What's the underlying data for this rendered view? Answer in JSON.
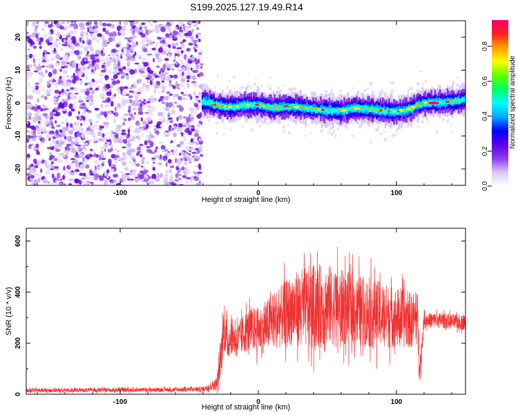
{
  "title": "S199.2025.127.19.49.R14",
  "chart_data": [
    {
      "type": "heatmap",
      "title": "S199.2025.127.19.49.R14",
      "xlabel": "Height of straight line (km)",
      "ylabel": "Frequency (Hz)",
      "xlim": [
        -168,
        150
      ],
      "ylim": [
        -25,
        25
      ],
      "x_ticks": [
        -100,
        0,
        100
      ],
      "y_ticks": [
        -20,
        -10,
        0,
        10,
        20
      ],
      "colorbar": {
        "label": "Normalized spectral amplitude",
        "range": [
          0,
          0.95
        ],
        "ticks": [
          0.0,
          0.2,
          0.4,
          0.6,
          0.8
        ],
        "colormap": [
          "#ffffff",
          "#d9c8f5",
          "#8a3cf0",
          "#5a00e6",
          "#0000ff",
          "#00aaff",
          "#00ffff",
          "#00ff60",
          "#60ff00",
          "#ffff00",
          "#ffa000",
          "#ff2020",
          "#ff0066"
        ]
      },
      "regions": [
        {
          "x_range": [
            -168,
            -41
          ],
          "description": "broadband noise, amplitude ~0.05-0.1"
        },
        {
          "x_range": [
            -41,
            150
          ],
          "description": "carrier signal"
        }
      ],
      "carrier_frequency": {
        "x": [
          -41,
          -36,
          -30,
          -20,
          -10,
          0,
          10,
          20,
          30,
          40,
          50,
          60,
          70,
          80,
          90,
          100,
          105,
          110,
          115,
          120,
          130,
          140,
          150
        ],
        "y": [
          0.5,
          0.2,
          -0.8,
          -1.2,
          -0.6,
          -0.5,
          -1.5,
          -1.0,
          -1.3,
          -1.8,
          -2.2,
          -2.4,
          -1.6,
          -1.8,
          -2.4,
          -2.6,
          -2.2,
          -1.8,
          -0.5,
          0.0,
          0.2,
          0.5,
          1.0
        ]
      }
    },
    {
      "type": "line",
      "xlabel": "Height of straight line (km)",
      "ylabel": "SNR (10 * v/v)",
      "xlim": [
        -168,
        150
      ],
      "ylim": [
        0,
        650
      ],
      "x_ticks": [
        -100,
        0,
        100
      ],
      "y_ticks": [
        0,
        200,
        400,
        600
      ],
      "color": "#ee3333",
      "envelope": {
        "x": [
          -168,
          -60,
          -40,
          -30,
          -27,
          -25,
          -22,
          -20,
          -15,
          -10,
          -5,
          0,
          5,
          10,
          15,
          20,
          30,
          40,
          50,
          60,
          70,
          80,
          90,
          100,
          110,
          115,
          117,
          120,
          130,
          140,
          150
        ],
        "mean": [
          15,
          18,
          20,
          40,
          150,
          260,
          200,
          230,
          210,
          240,
          260,
          250,
          260,
          290,
          300,
          320,
          340,
          340,
          350,
          340,
          330,
          320,
          310,
          300,
          290,
          300,
          100,
          290,
          290,
          285,
          280
        ],
        "spread": [
          8,
          8,
          10,
          25,
          80,
          90,
          70,
          70,
          70,
          80,
          85,
          90,
          100,
          110,
          120,
          130,
          150,
          170,
          160,
          150,
          140,
          140,
          130,
          120,
          110,
          110,
          60,
          30,
          30,
          30,
          30
        ]
      }
    }
  ]
}
